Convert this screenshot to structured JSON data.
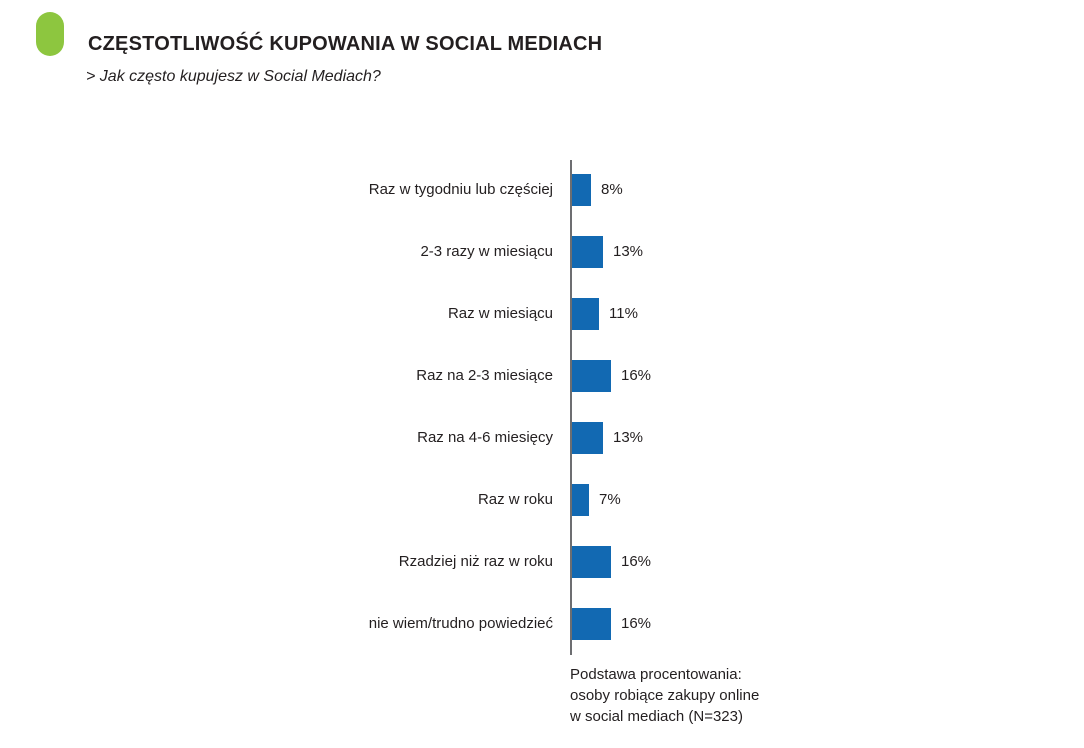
{
  "page": {
    "title": "CZĘSTOTLIWOŚĆ KUPOWANIA W SOCIAL MEDIACH",
    "subtitle": "> Jak często kupujesz w Social Mediach?"
  },
  "colors": {
    "bar_blue": "#1269b2",
    "bullet_green": "#8dc63f",
    "axis_gray": "#6d6e71",
    "text_black": "#231f20"
  },
  "footnote": {
    "lines": [
      "Podstawa procentowania:",
      "osoby robiące zakupy online",
      "w social mediach (N=323)"
    ]
  },
  "chart_data": {
    "type": "bar",
    "orientation": "horizontal",
    "title": "",
    "xlabel": "",
    "ylabel": "",
    "xlim": [
      0,
      20
    ],
    "grid": false,
    "legend": false,
    "categories": [
      "Raz w tygodniu lub częściej",
      "2-3 razy w miesiącu",
      "Raz w miesiącu",
      "Raz na 2-3 miesiące",
      "Raz na 4-6 miesięcy",
      "Raz w roku",
      "Rzadziej niż raz w roku",
      "nie wiem/trudno powiedzieć"
    ],
    "values": [
      8,
      13,
      11,
      16,
      13,
      7,
      16,
      16
    ],
    "value_labels": [
      "8%",
      "13%",
      "11%",
      "16%",
      "13%",
      "7%",
      "16%",
      "16%"
    ]
  }
}
